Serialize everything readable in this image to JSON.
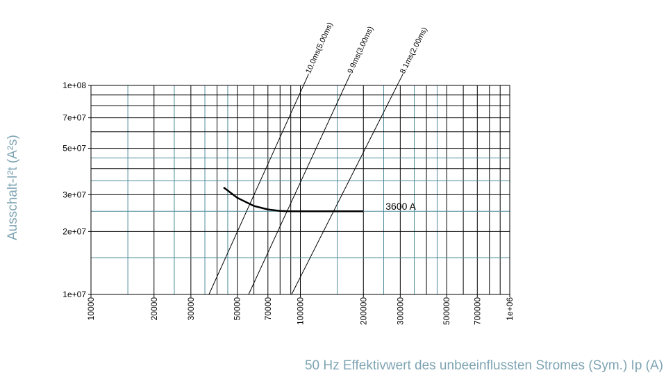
{
  "chart_data": {
    "type": "line",
    "xlabel": "50 Hz Effektivwert des unbeeinflussten Stromes (Sym.) Ip (A)",
    "ylabel": "Ausschalt-I²t (A²s)",
    "xscale": "log",
    "yscale": "log",
    "grid": true,
    "xlim": [
      10000,
      1000000
    ],
    "ylim": [
      10000000,
      100000000
    ],
    "xticks": [
      10000,
      20000,
      30000,
      50000,
      70000,
      100000,
      200000,
      300000,
      500000,
      700000,
      {
        "value": 1000000,
        "label": "1e+06"
      }
    ],
    "yticks": [
      {
        "value": 10000000,
        "label": "1e+07"
      },
      {
        "value": 20000000,
        "label": "2e+07"
      },
      {
        "value": 30000000,
        "label": "3e+07"
      },
      {
        "value": 50000000,
        "label": "5e+07"
      },
      {
        "value": 70000000,
        "label": "7e+07"
      },
      {
        "value": 100000000,
        "label": "1e+08"
      }
    ],
    "series": [
      {
        "name": "3600 A",
        "color": "#000000",
        "x": [
          43000,
          50000,
          60000,
          70000,
          80000,
          90000,
          100000,
          200000
        ],
        "values": [
          32500000,
          29000000,
          26500000,
          25500000,
          25100000,
          25000000,
          25000000,
          25000000
        ]
      }
    ],
    "reference_lines": [
      {
        "name": "10.0ms(5.00ms)",
        "color": "#000000",
        "x": [
          36600,
          103500
        ],
        "values": [
          10000000,
          100000000
        ]
      },
      {
        "name": "9.9ms(3.00ms)",
        "color": "#000000",
        "x": [
          56600,
          163700
        ],
        "values": [
          10000000,
          100000000
        ]
      },
      {
        "name": "8.1ms(2.00ms)",
        "color": "#000000",
        "x": [
          90800,
          290000
        ],
        "values": [
          10000000,
          100000000
        ]
      }
    ]
  }
}
